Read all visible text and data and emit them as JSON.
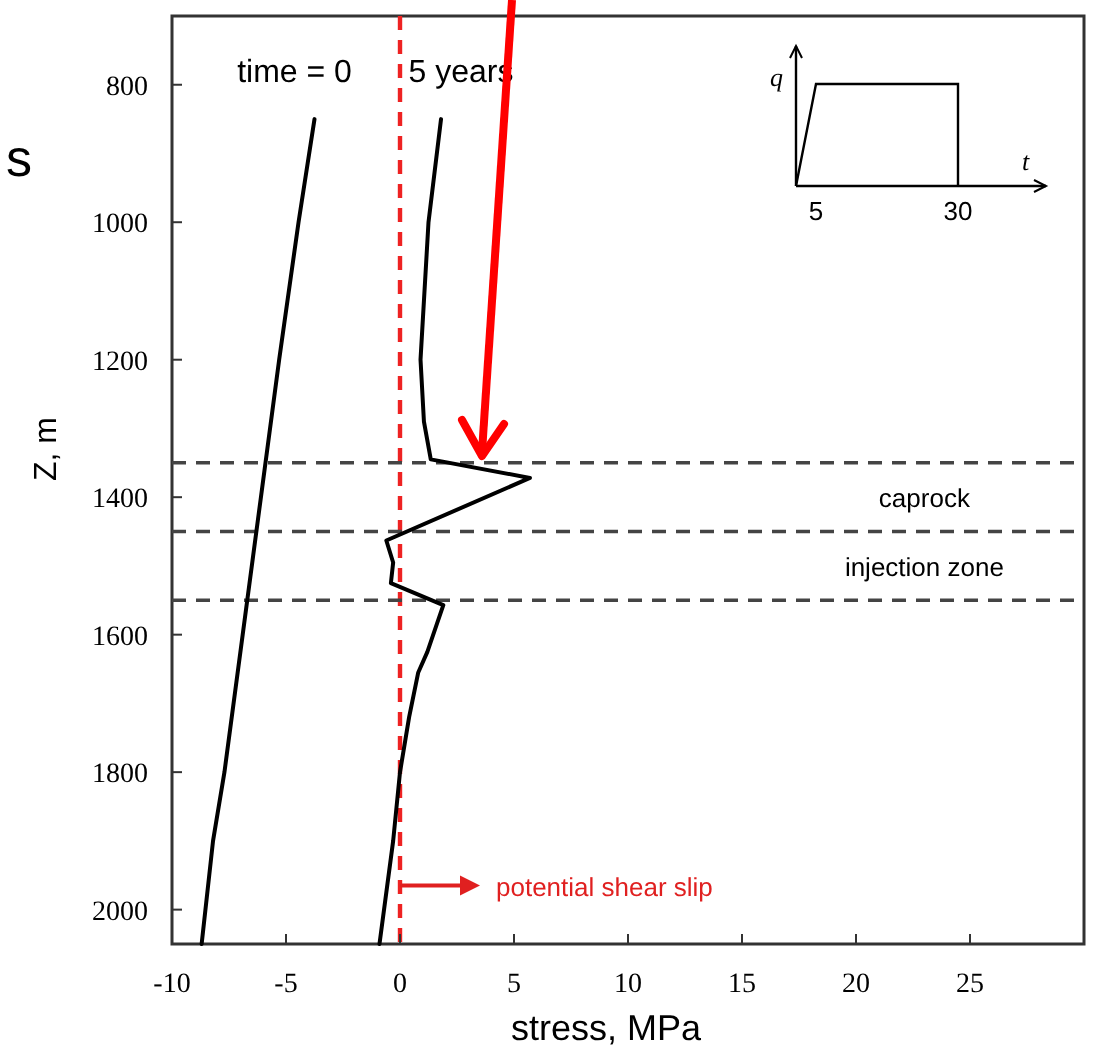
{
  "chart_data": {
    "type": "line",
    "xlabel": "stress, MPa",
    "ylabel": "Z, m",
    "xlim": [
      -10,
      30
    ],
    "xticks": [
      -10,
      -5,
      0,
      5,
      10,
      15,
      20,
      25
    ],
    "ylim": [
      2050,
      700
    ],
    "yticks": [
      800,
      1000,
      1200,
      1400,
      1600,
      1800,
      2000
    ],
    "grid": false,
    "line_style": "solid",
    "marker": "none",
    "series": [
      {
        "name": "time = 0",
        "color": "#000000",
        "x": [
          -3.75,
          -4.45,
          -5.3,
          -6.1,
          -6.9,
          -7.7,
          -8.2,
          -8.7
        ],
        "values": [
          850,
          1000,
          1200,
          1400,
          1600,
          1800,
          1900,
          2050
        ]
      },
      {
        "name": "5 years",
        "color": "#000000",
        "x": [
          1.8,
          1.25,
          0.9,
          1.05,
          1.35,
          5.7,
          -0.6,
          -0.3,
          -0.4,
          1.9,
          1.6,
          1.2,
          0.8,
          0.4,
          0,
          -0.3,
          -0.9
        ],
        "values": [
          850,
          1000,
          1200,
          1290,
          1345,
          1372,
          1463,
          1495,
          1525,
          1557,
          1586,
          1625,
          1655,
          1720,
          1800,
          1900,
          2050
        ]
      }
    ],
    "ref_lines": [
      {
        "axis": "x",
        "value": 0,
        "color": "#ee2222",
        "line_style": "dashed"
      },
      {
        "axis": "y",
        "value": 1350,
        "color": "#444444",
        "line_style": "dashed"
      },
      {
        "axis": "y",
        "value": 1450,
        "color": "#444444",
        "line_style": "dashed"
      },
      {
        "axis": "y",
        "value": 1550,
        "color": "#444444",
        "line_style": "dashed"
      }
    ],
    "annotations": [
      "caprock",
      "injection zone",
      "potential shear slip",
      "q",
      "t",
      "5",
      "30",
      "s"
    ]
  }
}
